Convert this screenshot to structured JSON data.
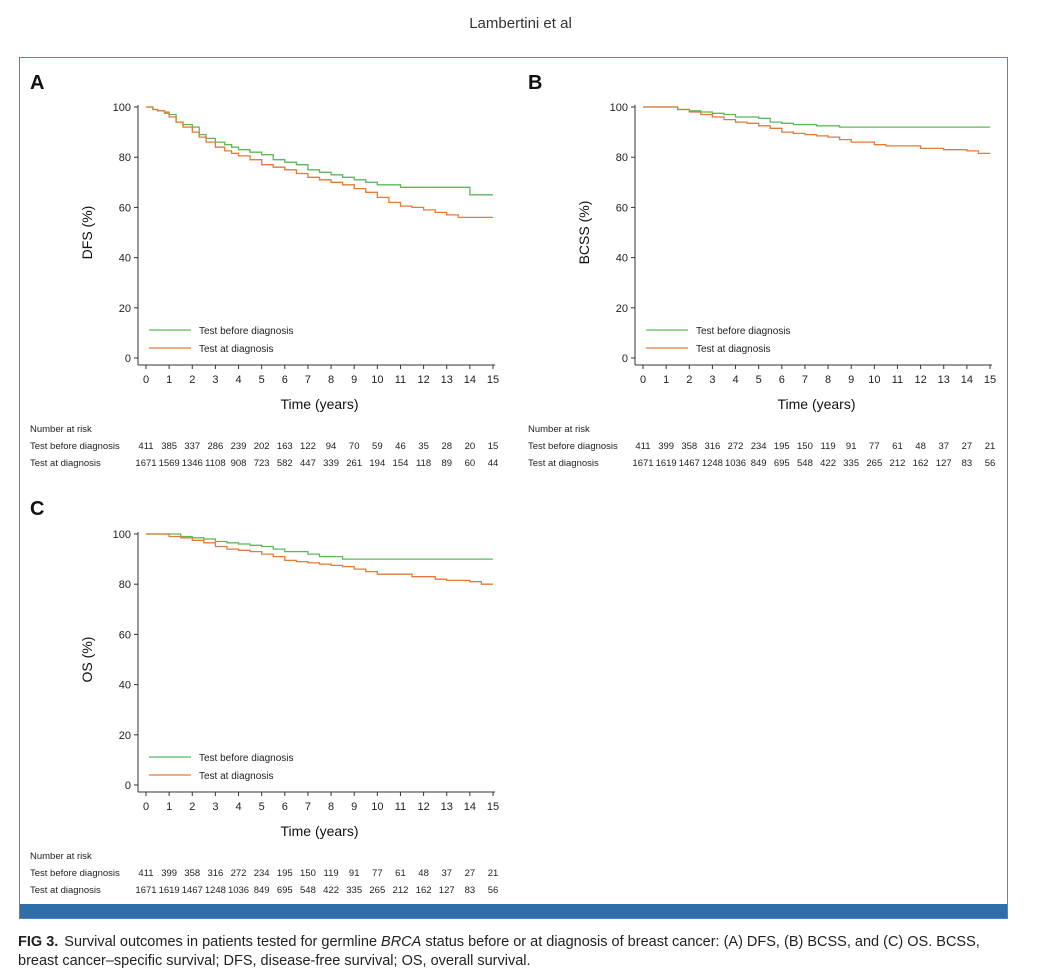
{
  "running_head": "Lambertini et al",
  "caption": {
    "label": "FIG 3.",
    "text_before": "Survival outcomes in patients tested for germline ",
    "italic": "BRCA",
    "text_after": " status before or at diagnosis of breast cancer: (A) DFS, (B) BCSS, and (C) OS. BCSS, breast cancer–specific survival; DFS, disease-free survival; OS, overall survival."
  },
  "colors": {
    "before": "#5cb85c",
    "at": "#e07b39",
    "frame": "#4a8ac4",
    "bar": "#2f6ea6"
  },
  "risk_header": "Number at risk",
  "chart_data": [
    {
      "panel": "A",
      "type": "line",
      "ylabel": "DFS (%)",
      "xlabel": "Time (years)",
      "xlim": [
        0,
        15
      ],
      "ylim": [
        0,
        100
      ],
      "xticks": [
        0,
        1,
        2,
        3,
        4,
        5,
        6,
        7,
        8,
        9,
        10,
        11,
        12,
        13,
        14,
        15
      ],
      "yticks": [
        0,
        20,
        40,
        60,
        80,
        100
      ],
      "grid": false,
      "legend": "bottom-left",
      "series": [
        {
          "name": "Test before diagnosis",
          "color": "#5cb85c",
          "x": [
            0,
            0.3,
            0.5,
            0.8,
            1,
            1.3,
            1.6,
            2,
            2.3,
            2.6,
            3,
            3.4,
            3.7,
            4,
            4.5,
            5,
            5.5,
            6,
            6.5,
            7,
            7.5,
            8,
            8.5,
            9,
            9.5,
            10,
            10.5,
            11,
            11.5,
            12,
            13,
            13.5,
            14,
            14.5,
            15
          ],
          "y": [
            100,
            99,
            98.5,
            98,
            97,
            94,
            93,
            92,
            89,
            87.5,
            86,
            85,
            84,
            83,
            82,
            81,
            79,
            78,
            77,
            75,
            74,
            73,
            72,
            71,
            70,
            69,
            69,
            68,
            68,
            68,
            68,
            68,
            65,
            65,
            65
          ],
          "at_risk": [
            "411",
            "385",
            "337",
            "286",
            "239",
            "202",
            "163",
            "122",
            "94",
            "70",
            "59",
            "46",
            "35",
            "28",
            "20",
            "15"
          ]
        },
        {
          "name": "Test at diagnosis",
          "color": "#e07b39",
          "x": [
            0,
            0.3,
            0.5,
            0.8,
            1,
            1.3,
            1.6,
            2,
            2.3,
            2.6,
            3,
            3.4,
            3.7,
            4,
            4.5,
            5,
            5.5,
            6,
            6.5,
            7,
            7.5,
            8,
            8.5,
            9,
            9.5,
            10,
            10.5,
            11,
            11.5,
            12,
            12.5,
            13,
            13.5,
            14,
            15
          ],
          "y": [
            100,
            99,
            98.5,
            97.5,
            96,
            94,
            92,
            90,
            88,
            86,
            84,
            82.5,
            81.5,
            80.5,
            79,
            77,
            76,
            75,
            73.5,
            72,
            71,
            70,
            69,
            67.5,
            66,
            64,
            62,
            60.5,
            60,
            59,
            58,
            57,
            56,
            56,
            56
          ],
          "at_risk": [
            "1671",
            "1569",
            "1346",
            "1108",
            "908",
            "723",
            "582",
            "447",
            "339",
            "261",
            "194",
            "154",
            "118",
            "89",
            "60",
            "44"
          ]
        }
      ]
    },
    {
      "panel": "B",
      "type": "line",
      "ylabel": "BCSS (%)",
      "xlabel": "Time (years)",
      "xlim": [
        0,
        15
      ],
      "ylim": [
        0,
        100
      ],
      "xticks": [
        0,
        1,
        2,
        3,
        4,
        5,
        6,
        7,
        8,
        9,
        10,
        11,
        12,
        13,
        14,
        15
      ],
      "yticks": [
        0,
        20,
        40,
        60,
        80,
        100
      ],
      "grid": false,
      "legend": "bottom-left",
      "series": [
        {
          "name": "Test before diagnosis",
          "color": "#5cb85c",
          "x": [
            0,
            1,
            1.5,
            2,
            2.5,
            3,
            3.5,
            4,
            4.5,
            5,
            5.5,
            6,
            6.5,
            7,
            7.5,
            8,
            8.5,
            9,
            10,
            11,
            12,
            13,
            14,
            15
          ],
          "y": [
            100,
            100,
            99,
            98.5,
            98,
            97.5,
            97,
            96,
            96,
            95.5,
            94,
            93.5,
            93,
            93,
            92.5,
            92.5,
            92,
            92,
            92,
            92,
            92,
            92,
            92,
            92
          ],
          "at_risk": [
            "411",
            "399",
            "358",
            "316",
            "272",
            "234",
            "195",
            "150",
            "119",
            "91",
            "77",
            "61",
            "48",
            "37",
            "27",
            "21"
          ]
        },
        {
          "name": "Test at diagnosis",
          "color": "#e07b39",
          "x": [
            0,
            1,
            1.5,
            2,
            2.5,
            3,
            3.5,
            4,
            4.5,
            5,
            5.5,
            6,
            6.5,
            7,
            7.5,
            8,
            8.5,
            9,
            9.5,
            10,
            10.5,
            11,
            11.5,
            12,
            12.5,
            13,
            13.5,
            14,
            14.5,
            15
          ],
          "y": [
            100,
            100,
            99,
            98,
            97,
            96,
            95,
            94,
            93.5,
            92.5,
            91.5,
            90,
            89.5,
            89,
            88.5,
            88,
            87,
            86,
            86,
            85,
            84.5,
            84.5,
            84.5,
            83.5,
            83.5,
            83,
            83,
            82.5,
            81.5,
            81.5
          ],
          "at_risk": [
            "1671",
            "1619",
            "1467",
            "1248",
            "1036",
            "849",
            "695",
            "548",
            "422",
            "335",
            "265",
            "212",
            "162",
            "127",
            "83",
            "56"
          ]
        }
      ]
    },
    {
      "panel": "C",
      "type": "line",
      "ylabel": "OS (%)",
      "xlabel": "Time (years)",
      "xlim": [
        0,
        15
      ],
      "ylim": [
        0,
        100
      ],
      "xticks": [
        0,
        1,
        2,
        3,
        4,
        5,
        6,
        7,
        8,
        9,
        10,
        11,
        12,
        13,
        14,
        15
      ],
      "yticks": [
        0,
        20,
        40,
        60,
        80,
        100
      ],
      "grid": false,
      "legend": "bottom-left",
      "series": [
        {
          "name": "Test before diagnosis",
          "color": "#5cb85c",
          "x": [
            0,
            1,
            1.5,
            2,
            2.5,
            3,
            3.5,
            4,
            4.5,
            5,
            5.5,
            6,
            6.5,
            7,
            7.5,
            8,
            8.5,
            9,
            10,
            11,
            12,
            13,
            14,
            15
          ],
          "y": [
            100,
            100,
            99,
            98.5,
            98,
            97,
            96.5,
            96,
            95.5,
            95,
            94,
            93,
            93,
            92,
            91,
            91,
            90,
            90,
            90,
            90,
            90,
            90,
            90,
            90
          ],
          "at_risk": [
            "411",
            "399",
            "358",
            "316",
            "272",
            "234",
            "195",
            "150",
            "119",
            "91",
            "77",
            "61",
            "48",
            "37",
            "27",
            "21"
          ]
        },
        {
          "name": "Test at diagnosis",
          "color": "#e07b39",
          "x": [
            0,
            1,
            1.5,
            2,
            2.5,
            3,
            3.5,
            4,
            4.5,
            5,
            5.5,
            6,
            6.5,
            7,
            7.5,
            8,
            8.5,
            9,
            9.5,
            10,
            10.5,
            11,
            11.5,
            12,
            12.5,
            13,
            13.5,
            14,
            14.5,
            15
          ],
          "y": [
            100,
            99,
            98.5,
            97.5,
            96.5,
            95,
            94,
            93.5,
            93,
            92,
            91,
            89.5,
            89,
            88.5,
            88,
            87.5,
            87,
            86,
            85,
            84,
            84,
            84,
            83,
            83,
            82,
            81.5,
            81.5,
            81,
            80,
            80
          ],
          "at_risk": [
            "1671",
            "1619",
            "1467",
            "1248",
            "1036",
            "849",
            "695",
            "548",
            "422",
            "335",
            "265",
            "212",
            "162",
            "127",
            "83",
            "56"
          ]
        }
      ]
    }
  ]
}
